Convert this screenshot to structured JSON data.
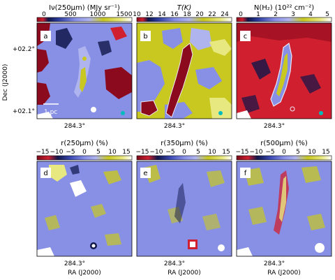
{
  "figure": {
    "ylabel": "Dec (J2000)",
    "xlabel_bottom": "RA (J2000)",
    "xtick": "284.3°",
    "ytick_top": "+02.2°",
    "ytick_bottom": "+02.1°",
    "scalebar_label": "1 pc",
    "cbar_exponent": "1e22"
  },
  "colors": {
    "background_blue": "#8890e6",
    "yellow": "#c8c820",
    "dark_red": "#8c0a1e",
    "navy": "#10164a",
    "contour": "#e8e8f4",
    "marker_cyan": "#00bcbc"
  },
  "panels": [
    {
      "id": "a",
      "title": "Iν(250μm) (MJy sr⁻¹)",
      "ticks": [
        "0",
        "500",
        "1000",
        "1500"
      ],
      "mode": "intensity"
    },
    {
      "id": "b",
      "title": "T(K)",
      "ticks": [
        "10",
        "12",
        "14",
        "16",
        "18",
        "20",
        "22",
        "24"
      ],
      "mode": "temperature"
    },
    {
      "id": "c",
      "title": "N(H₂) (10²² cm⁻²)",
      "ticks": [
        "0",
        "1",
        "2",
        "3",
        "4",
        "5"
      ],
      "mode": "column"
    },
    {
      "id": "d",
      "title": "r(250μm) (%)",
      "ticks": [
        "−15",
        "−10",
        "−5",
        "0",
        "5",
        "10",
        "15"
      ],
      "mode": "residual"
    },
    {
      "id": "e",
      "title": "r(350μm) (%)",
      "ticks": [
        "−15",
        "−10",
        "−5",
        "0",
        "5",
        "10",
        "15"
      ],
      "mode": "residual"
    },
    {
      "id": "f",
      "title": "r(500μm) (%)",
      "ticks": [
        "−15",
        "−10",
        "−5",
        "0",
        "5",
        "10",
        "15"
      ],
      "mode": "residual"
    }
  ],
  "chart_data": [
    {
      "type": "heatmap",
      "panel": "a",
      "title": "Iν(250μm) (MJy sr⁻¹)",
      "colorbar_range": [
        0,
        1600
      ],
      "xlabel": "",
      "xticks": [
        "284.3°"
      ],
      "yticks": [
        "+02.2°",
        "+02.1°"
      ],
      "ylabel": "Dec (J2000)"
    },
    {
      "type": "heatmap",
      "panel": "b",
      "title": "T(K)",
      "colorbar_range": [
        10,
        25
      ],
      "xticks": [
        "284.3°"
      ]
    },
    {
      "type": "heatmap",
      "panel": "c",
      "title": "N(H₂) (10²² cm⁻²)",
      "colorbar_range": [
        0,
        5
      ],
      "xticks": [
        "284.3°"
      ]
    },
    {
      "type": "heatmap",
      "panel": "d",
      "title": "r(250μm) (%)",
      "colorbar_range": [
        -17,
        17
      ],
      "xticks": [
        "284.3°"
      ],
      "xlabel": "RA (J2000)"
    },
    {
      "type": "heatmap",
      "panel": "e",
      "title": "r(350μm) (%)",
      "colorbar_range": [
        -17,
        17
      ],
      "xticks": [
        "284.3°"
      ],
      "xlabel": "RA (J2000)"
    },
    {
      "type": "heatmap",
      "panel": "f",
      "title": "r(500μm) (%)",
      "colorbar_range": [
        -17,
        17
      ],
      "xticks": [
        "284.3°"
      ],
      "xlabel": "RA (J2000)"
    }
  ]
}
